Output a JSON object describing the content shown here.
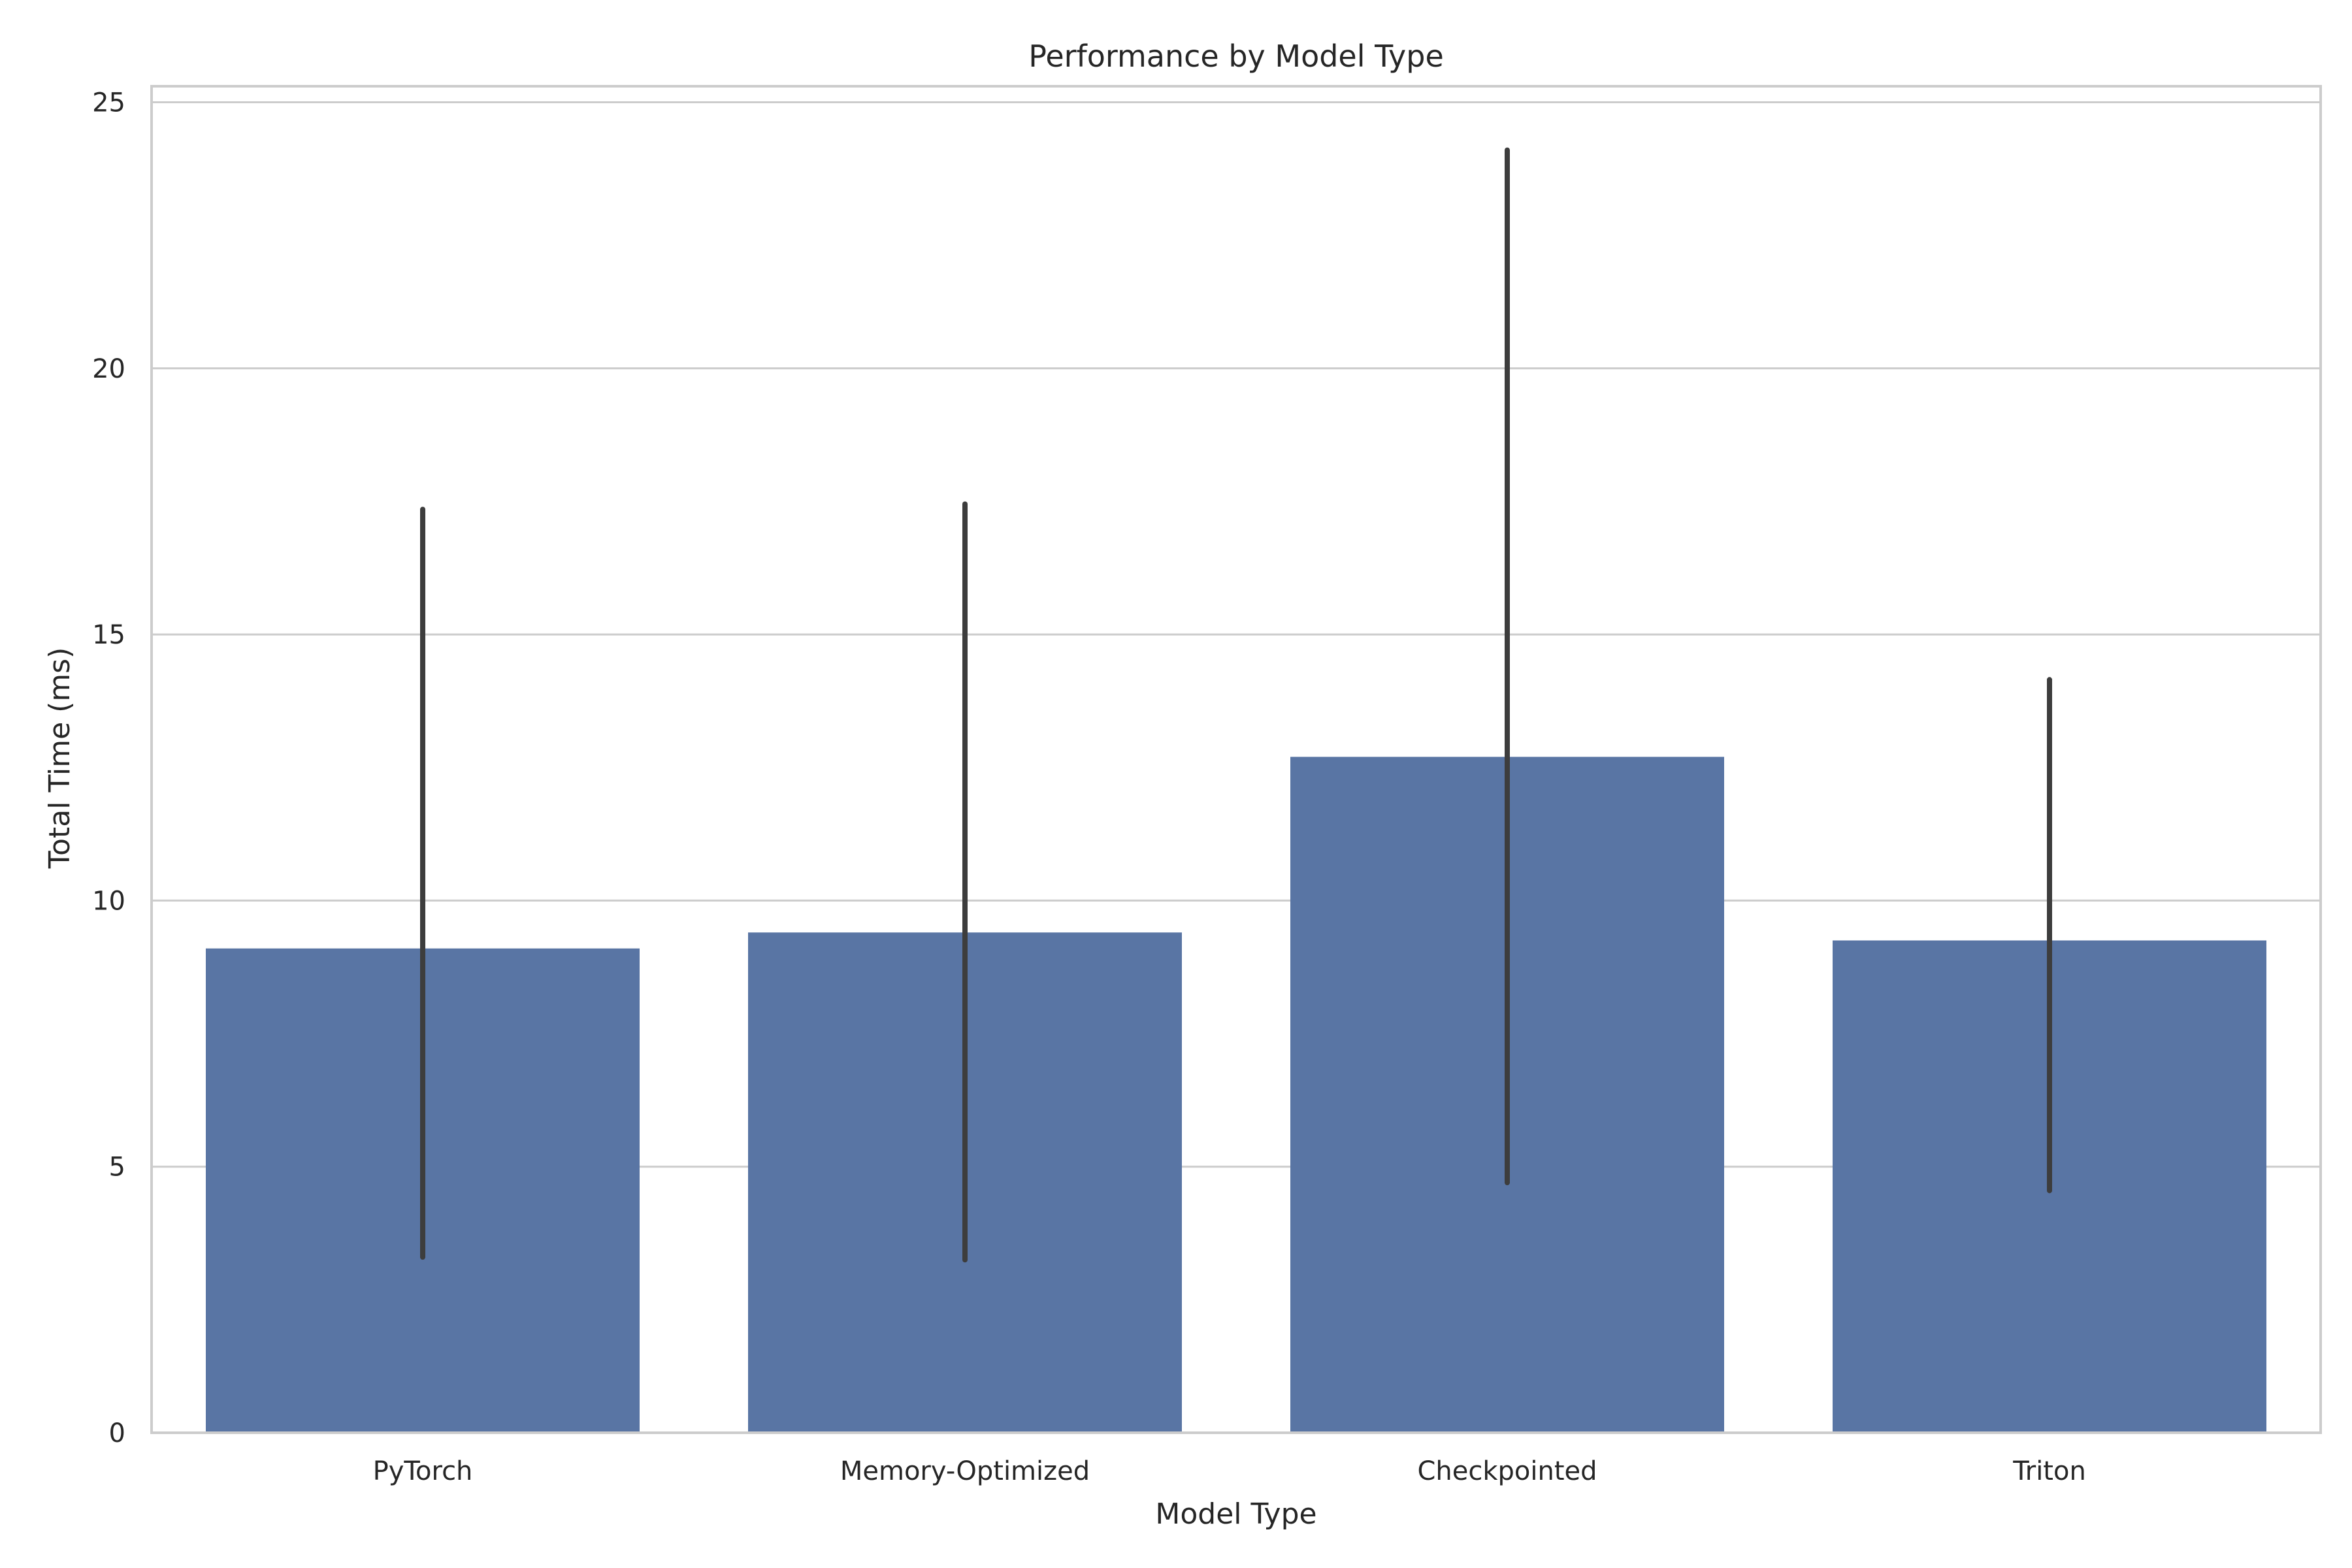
{
  "chart_data": {
    "type": "bar",
    "title": "Performance by Model Type",
    "xlabel": "Model Type",
    "ylabel": "Total Time (ms)",
    "categories": [
      "PyTorch",
      "Memory-Optimized",
      "Checkpointed",
      "Triton"
    ],
    "values": [
      9.1,
      9.4,
      12.7,
      9.25
    ],
    "error_low": [
      3.3,
      3.25,
      4.7,
      4.55
    ],
    "error_high": [
      17.35,
      17.45,
      24.1,
      14.15
    ],
    "yticks": [
      0,
      5,
      10,
      15,
      20,
      25
    ],
    "ylim": [
      0,
      25.3
    ],
    "grid": "horizontal",
    "legend": "none",
    "colors": {
      "bar": "#5975a4",
      "errorbar": "#3d3d3d",
      "grid": "#cccccc",
      "frame": "#cccccc",
      "text": "#262626"
    }
  }
}
